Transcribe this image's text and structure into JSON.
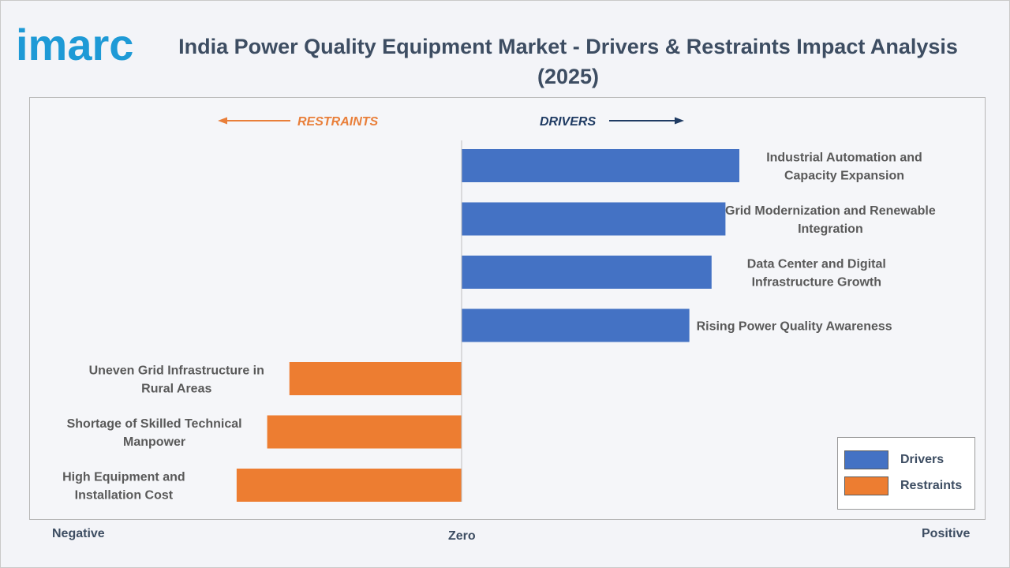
{
  "brand": {
    "name": "imarc",
    "color": "#1e9ad6"
  },
  "title": "India Power Quality Equipment Market - Drivers & Restraints Impact Analysis (2025)",
  "chart_data": {
    "type": "bar",
    "orientation": "horizontal",
    "direction_labels": {
      "restraints": "RESTRAINTS",
      "drivers": "DRIVERS"
    },
    "axis_labels": {
      "negative": "Negative",
      "zero": "Zero",
      "positive": "Positive"
    },
    "grid": false,
    "legend_position": "bottom-right",
    "series": [
      {
        "name": "Drivers",
        "color": "#4472c4"
      },
      {
        "name": "Restraints",
        "color": "#ed7d31"
      }
    ],
    "categories": [
      {
        "label": "Industrial Automation and Capacity Expansion",
        "series": "Drivers",
        "value": 1.0
      },
      {
        "label": "Grid Modernization and Renewable Integration",
        "series": "Drivers",
        "value": 0.95
      },
      {
        "label": "Data Center and Digital Infrastructure Growth",
        "series": "Drivers",
        "value": 0.9
      },
      {
        "label": "Rising Power Quality Awareness",
        "series": "Drivers",
        "value": 0.82
      },
      {
        "label": "Uneven Grid Infrastructure in Rural Areas",
        "series": "Restraints",
        "value": -0.62
      },
      {
        "label": "Shortage of Skilled Technical Manpower",
        "series": "Restraints",
        "value": -0.7
      },
      {
        "label": "High Equipment and Installation Cost",
        "series": "Restraints",
        "value": -0.81
      }
    ],
    "colors": {
      "restraint_arrow": "#e97f3a",
      "driver_arrow": "#1f3b63",
      "axis_line": "#bfbfbf",
      "text": "#595959"
    }
  }
}
